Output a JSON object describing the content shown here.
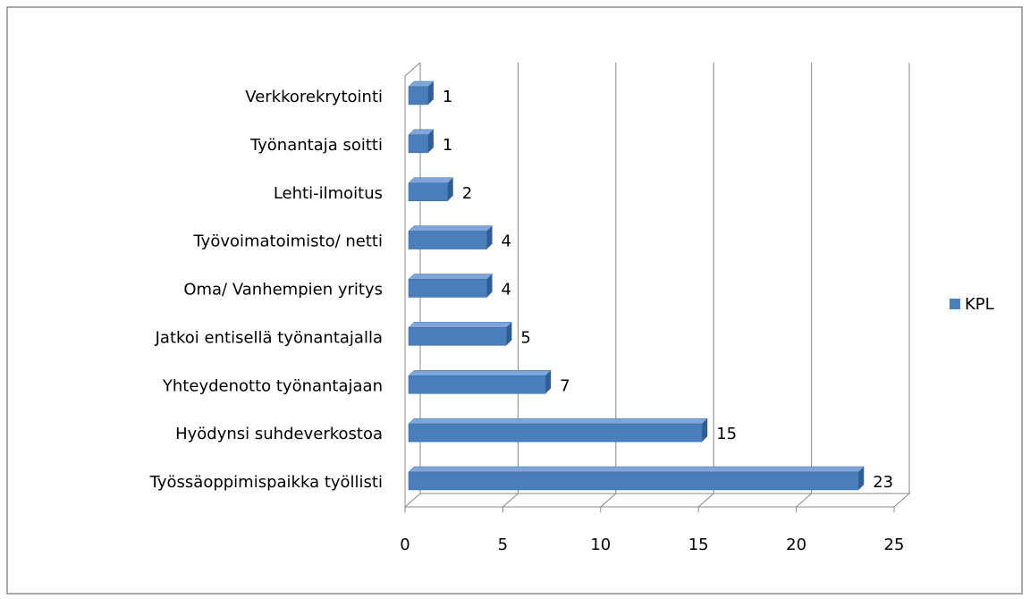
{
  "chart_data": {
    "type": "bar3d_horizontal",
    "categories": [
      "Verkkorekrytointi",
      "Työnantaja soitti",
      "Lehti-ilmoitus",
      "Työvoimatoimisto/ netti",
      "Oma/ Vanhempien yritys",
      "Jatkoi entisellä työnantajalla",
      "Yhteydenotto työnantajaan",
      "Hyödynsi suhdeverkostoa",
      "Työssäoppimispaikka työllisti"
    ],
    "series": [
      {
        "name": "KPL",
        "color": "#4a7ebb",
        "values": [
          1,
          1,
          2,
          4,
          4,
          5,
          7,
          15,
          23
        ]
      }
    ],
    "xlim": [
      0,
      25
    ],
    "xticks": [
      0,
      5,
      10,
      15,
      20,
      25
    ],
    "grid": true,
    "legend": "right"
  }
}
